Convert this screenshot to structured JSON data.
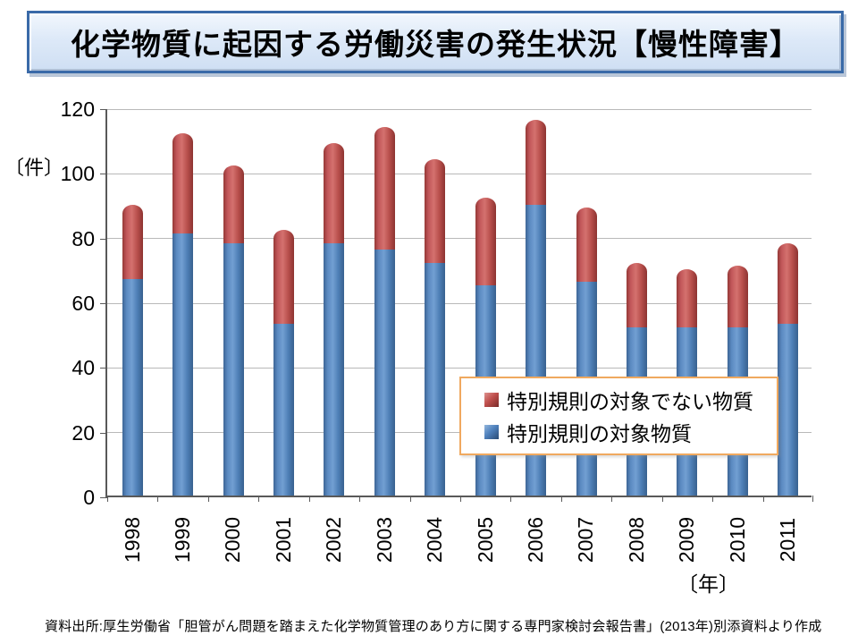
{
  "slide": {
    "title": "化学物質に起因する労働災害の発生状況【慢性障害】",
    "source_note": "資料出所:厚生労働省「胆管がん問題を踏まえた化学物質管理のあり方に関する専門家検討会報告書」(2013年)別添資料より作成"
  },
  "colors": {
    "title_fill": "#DCE7F5",
    "title_border": "#3A6AA8",
    "legend_border": "#F0A95F",
    "gridline": "#B9B9B9",
    "axis": "#595959",
    "series_not_covered_red": "#C0504D",
    "series_covered_blue": "#4F81BD"
  },
  "legend": {
    "items": [
      {
        "label": "特別規則の対象でない物質",
        "color": "#C0504D"
      },
      {
        "label": "特別規則の対象物質",
        "color": "#4F81BD"
      }
    ]
  },
  "chart_data": {
    "type": "bar",
    "stacked": true,
    "title": "化学物質に起因する労働災害の発生状況【慢性障害】",
    "xlabel": "〔年〕",
    "ylabel": "〔件〕",
    "categories": [
      "1998",
      "1999",
      "2000",
      "2001",
      "2002",
      "2003",
      "2004",
      "2005",
      "2006",
      "2007",
      "2008",
      "2009",
      "2010",
      "2011"
    ],
    "series": [
      {
        "name": "特別規則の対象物質",
        "color": "#4F81BD",
        "values": [
          67,
          81,
          78,
          53,
          78,
          76,
          72,
          65,
          90,
          66,
          52,
          52,
          52,
          53
        ]
      },
      {
        "name": "特別規則の対象でない物質",
        "color": "#C0504D",
        "values": [
          23,
          31,
          24,
          29,
          31,
          38,
          32,
          27,
          26,
          23,
          20,
          18,
          19,
          25
        ]
      }
    ],
    "totals": [
      90,
      112,
      102,
      82,
      109,
      114,
      104,
      92,
      116,
      89,
      72,
      70,
      71,
      78
    ],
    "ylim": [
      0,
      120
    ],
    "y_ticks": [
      0,
      20,
      40,
      60,
      80,
      100,
      120
    ],
    "grid": true,
    "legend_position": "inside lower-right"
  }
}
